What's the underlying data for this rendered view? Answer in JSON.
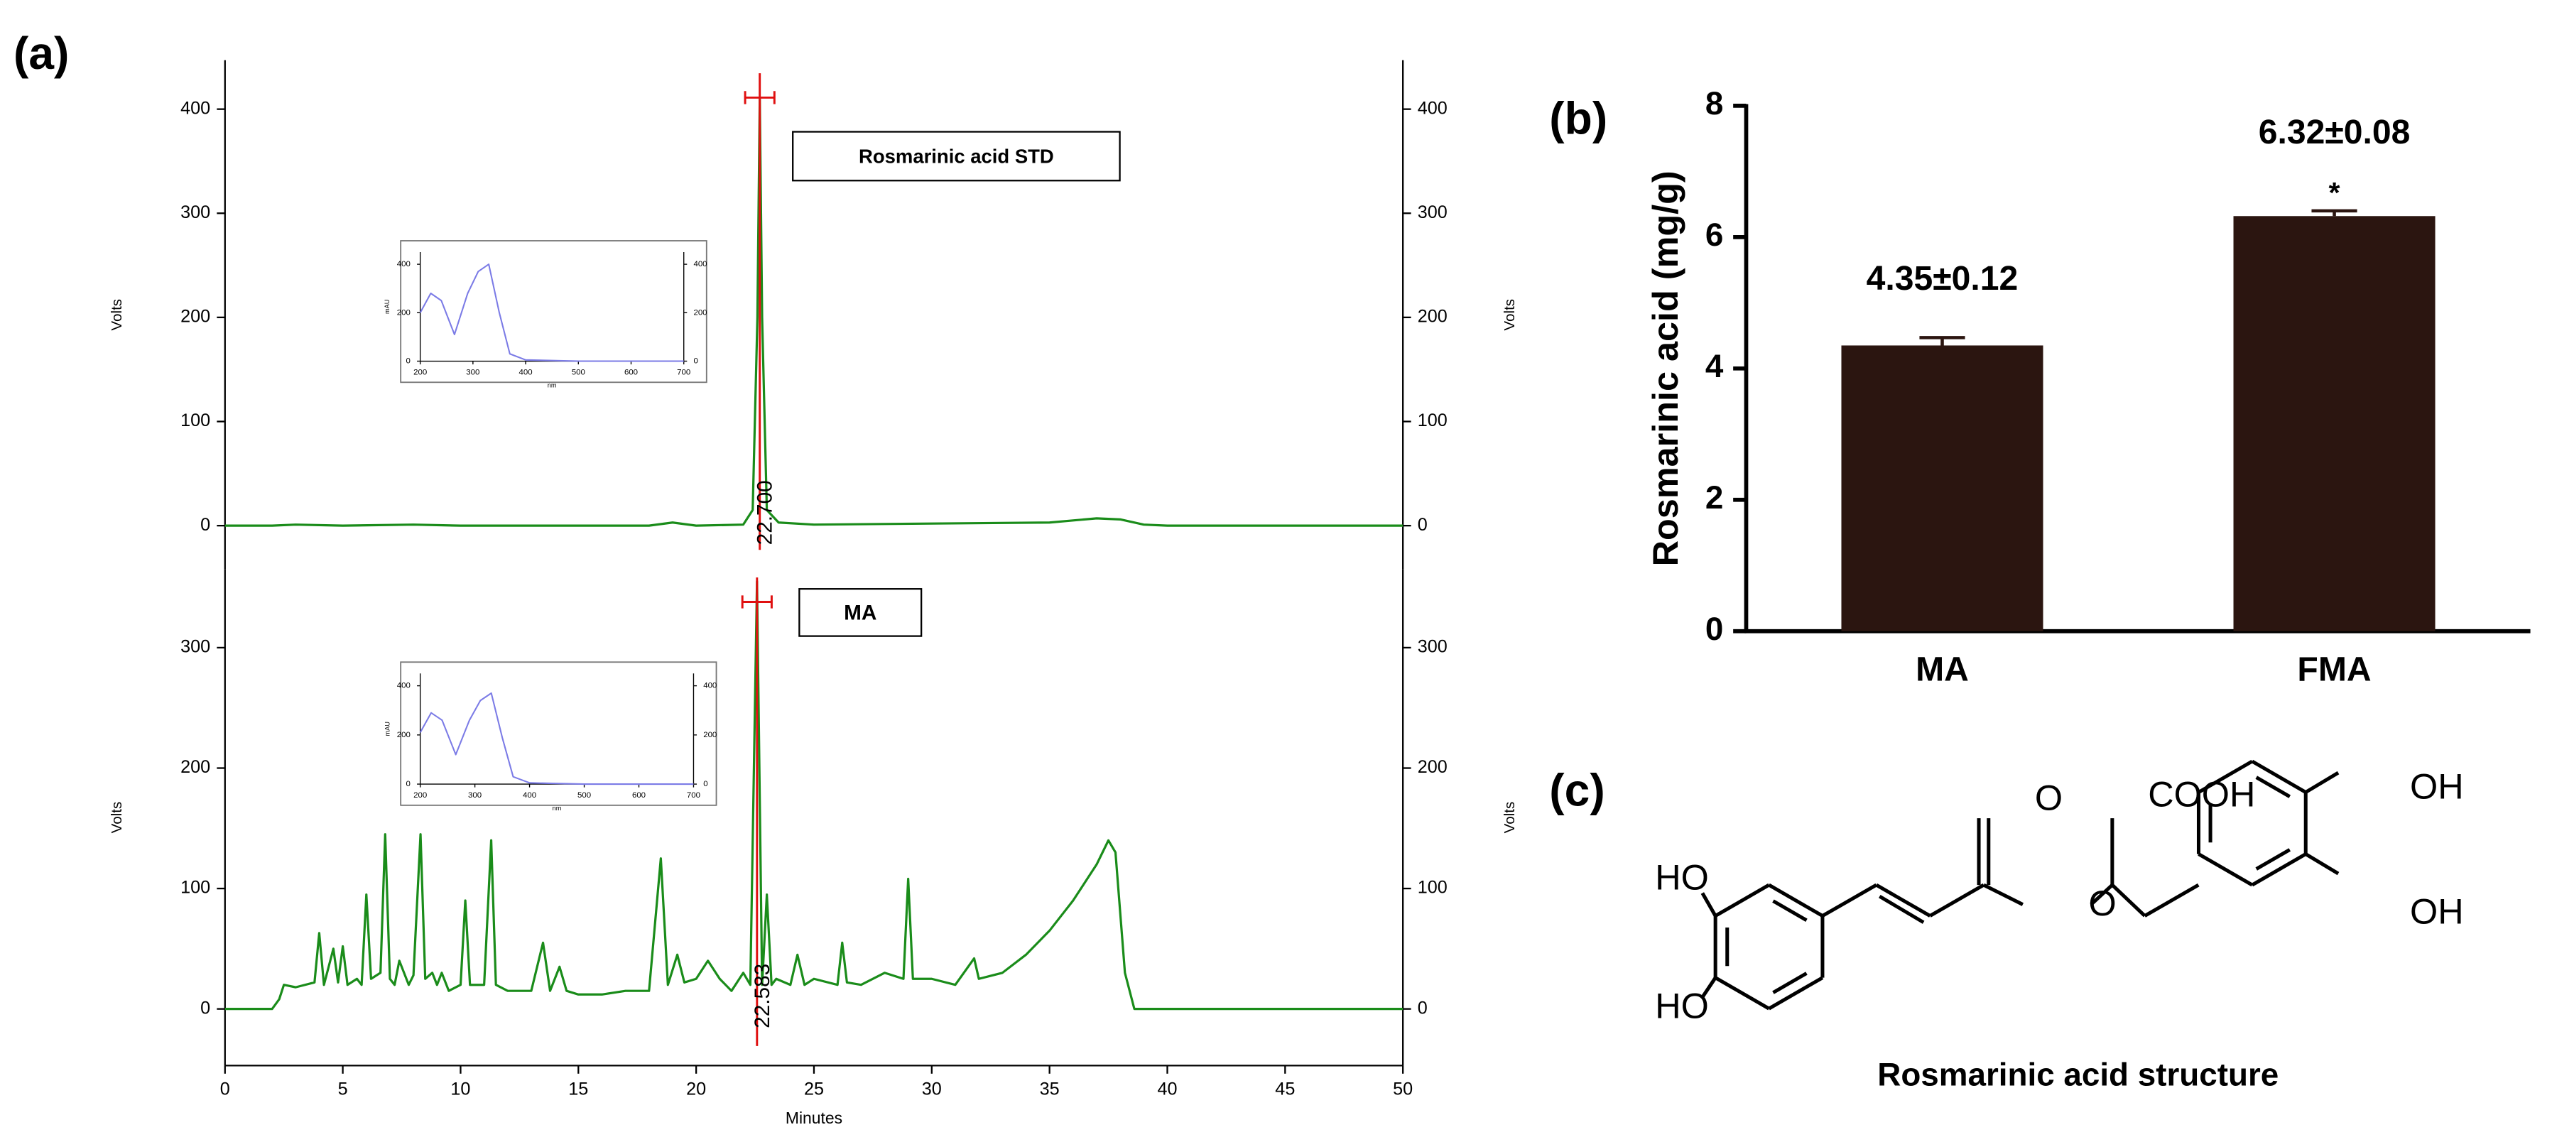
{
  "panel_labels": [
    "(a)",
    "(b)",
    "(c)"
  ],
  "chart_data": [
    {
      "type": "line",
      "ylabel": "Volts",
      "xlim": [
        0,
        50
      ],
      "ylim": [
        -42,
        447
      ],
      "yticks": [
        0,
        100,
        200,
        300,
        400
      ],
      "x": [
        0,
        2,
        3,
        5,
        8,
        10,
        15,
        18,
        19,
        20,
        22,
        22.4,
        22.6,
        22.7,
        22.8,
        23,
        23.5,
        25,
        30,
        35,
        36,
        37,
        38,
        39,
        40,
        45,
        50
      ],
      "series": [
        {
          "name": "Rosmarinic acid STD",
          "color": "#1a8c1a",
          "values": [
            0,
            0,
            1,
            0,
            1,
            0,
            0,
            0,
            3,
            0,
            1,
            15,
            200,
            410,
            200,
            15,
            3,
            1,
            2,
            3,
            5,
            7,
            6,
            1,
            0,
            0,
            0
          ]
        }
      ],
      "peak_labels": [
        {
          "value": 22.7,
          "label": "22.700"
        }
      ]
    },
    {
      "type": "line",
      "ylabel": "Volts",
      "xlabel": "Minutes",
      "xlim": [
        0,
        50
      ],
      "ylim": [
        -47,
        365
      ],
      "yticks": [
        0,
        100,
        200,
        300
      ],
      "xticks": [
        0,
        5,
        10,
        15,
        20,
        25,
        30,
        35,
        40,
        45,
        50
      ],
      "x": [
        0,
        2,
        2.3,
        2.5,
        3,
        3.8,
        4,
        4.2,
        4.6,
        4.8,
        5,
        5.2,
        5.6,
        5.8,
        6,
        6.2,
        6.6,
        6.8,
        7,
        7.2,
        7.4,
        7.8,
        8,
        8.3,
        8.5,
        8.8,
        9,
        9.2,
        9.5,
        10,
        10.2,
        10.4,
        11,
        11.3,
        11.5,
        12,
        13,
        13.5,
        13.8,
        14.2,
        14.5,
        15,
        16,
        17,
        18,
        18.5,
        18.8,
        19.2,
        19.5,
        20,
        20.5,
        21,
        21.5,
        22,
        22.3,
        22.583,
        22.8,
        23,
        23.2,
        23.4,
        24,
        24.3,
        24.6,
        25,
        26,
        26.2,
        26.4,
        27,
        28,
        28.8,
        29,
        29.2,
        30,
        31,
        31.8,
        32,
        33,
        34,
        35,
        36,
        37,
        37.5,
        37.8,
        38.2,
        38.6,
        40,
        45,
        50
      ],
      "series": [
        {
          "name": "MA",
          "color": "#1a8c1a",
          "values": [
            0,
            0,
            8,
            20,
            18,
            22,
            63,
            20,
            50,
            22,
            52,
            20,
            25,
            20,
            95,
            25,
            30,
            145,
            25,
            20,
            40,
            20,
            28,
            145,
            25,
            30,
            20,
            30,
            15,
            20,
            90,
            20,
            20,
            140,
            20,
            15,
            15,
            55,
            15,
            35,
            15,
            12,
            12,
            15,
            15,
            125,
            20,
            45,
            22,
            25,
            40,
            25,
            15,
            30,
            20,
            355,
            20,
            95,
            20,
            25,
            20,
            45,
            20,
            25,
            20,
            55,
            22,
            20,
            30,
            25,
            108,
            25,
            25,
            20,
            42,
            25,
            30,
            45,
            65,
            90,
            120,
            140,
            130,
            30,
            0,
            0,
            0,
            0
          ]
        }
      ],
      "peak_labels": [
        {
          "value": 22.583,
          "label": "22.583"
        }
      ]
    },
    {
      "type": "line",
      "xlabel": "nm",
      "ylabel": "mAU",
      "xlim": [
        200,
        700
      ],
      "ylim": [
        0,
        450
      ],
      "xticks": [
        200,
        300,
        400,
        500,
        600,
        700
      ],
      "yticks": [
        0,
        200,
        400
      ],
      "x": [
        200,
        220,
        240,
        265,
        290,
        310,
        330,
        350,
        370,
        400,
        500,
        700
      ],
      "series": [
        {
          "color": "#7b7be6",
          "values": [
            200,
            280,
            250,
            110,
            280,
            370,
            400,
            200,
            30,
            5,
            0,
            0
          ]
        }
      ]
    },
    {
      "type": "line",
      "xlabel": "nm",
      "ylabel": "mAU",
      "xlim": [
        200,
        700
      ],
      "ylim": [
        0,
        450
      ],
      "xticks": [
        200,
        300,
        400,
        500,
        600,
        700
      ],
      "yticks": [
        0,
        200,
        400
      ],
      "x": [
        200,
        220,
        240,
        265,
        290,
        310,
        330,
        350,
        370,
        400,
        500,
        700
      ],
      "series": [
        {
          "color": "#7b7be6",
          "values": [
            210,
            290,
            260,
            120,
            260,
            340,
            370,
            190,
            30,
            5,
            0,
            0
          ]
        }
      ]
    },
    {
      "type": "bar",
      "ylabel": "Rosmarinic acid (mg/g)",
      "categories": [
        "MA",
        "FMA"
      ],
      "values": [
        4.35,
        6.32
      ],
      "errors": [
        0.12,
        0.08
      ],
      "value_labels": [
        "4.35±0.12",
        "6.32±0.08"
      ],
      "significance": {
        "FMA": "*"
      },
      "color": "#2b1510",
      "ylim": [
        0,
        8
      ],
      "yticks": [
        0,
        2,
        4,
        6,
        8
      ]
    }
  ],
  "structure": {
    "labels": [
      "HO",
      "HO",
      "O",
      "O",
      "COOH",
      "OH",
      "OH"
    ],
    "title": "Rosmarinic acid structure"
  }
}
